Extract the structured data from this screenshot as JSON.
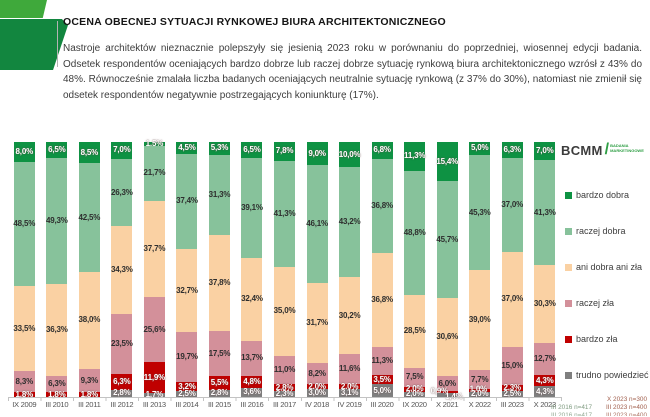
{
  "header": {
    "title": "OCENA OBECNEJ SYTUACJI RYNKOWEJ BIURA ARCHITEKTONICZNEGO",
    "paragraph": "Nastroje architektów nieznacznie polepszyły się jesienią 2023 roku w porównaniu do poprzedniej, wiosennej edycji badania. Odsetek respondentów oceniających bardzo dobrze lub raczej dobrze sytuację rynkową biura architektonicznego wzrósł z 43% do 48%. Równocześnie zmalała liczba badanych oceniających neutralnie sytuację rynkową (z 37% do 30%), natomiast nie zmienił się odsetek respondentów negatywnie postrzegających koniunkturę (17%)."
  },
  "brand": {
    "name": "BCMM",
    "slash": "/",
    "tagline_line1": "BADANIA",
    "tagline_line2": "MARKETINGOWE",
    "accent_color": "#2e9e44"
  },
  "chart_data": {
    "type": "bar",
    "stacked": true,
    "unit": "%",
    "ylim": [
      0,
      100
    ],
    "grid": false,
    "legend_position": "right",
    "decimal_separator": ",",
    "categories": [
      "IX 2009",
      "III 2010",
      "III 2011",
      "III 2012",
      "III 2013",
      "III 2014",
      "III 2015",
      "III 2016",
      "III 2017",
      "IV 2018",
      "IV 2019",
      "III 2020",
      "IX 2020",
      "X 2021",
      "X 2022",
      "III 2023",
      "X 2023"
    ],
    "series": [
      {
        "name": "bardzo dobra",
        "color": "#0e9243",
        "label_style": "light",
        "values": [
          8.0,
          6.5,
          8.5,
          7.0,
          1.5,
          4.5,
          5.3,
          6.5,
          7.8,
          9.0,
          10.0,
          6.8,
          11.3,
          15.4,
          5.0,
          6.3,
          7.0
        ]
      },
      {
        "name": "raczej dobra",
        "color": "#87c29b",
        "label_style": "dark",
        "values": [
          48.5,
          49.3,
          42.5,
          26.3,
          21.7,
          37.4,
          31.3,
          39.1,
          41.3,
          46.1,
          43.2,
          36.8,
          48.8,
          45.7,
          45.3,
          37.0,
          41.3
        ]
      },
      {
        "name": "ani dobra ani zła",
        "color": "#fad1a3",
        "label_style": "dark",
        "values": [
          33.5,
          36.3,
          38.0,
          34.3,
          37.7,
          32.7,
          37.8,
          32.4,
          35.0,
          31.7,
          30.2,
          36.8,
          28.5,
          30.6,
          39.0,
          37.0,
          30.3
        ]
      },
      {
        "name": "raczej zła",
        "color": "#d3909a",
        "label_style": "dark",
        "values": [
          8.3,
          6.3,
          9.3,
          23.5,
          25.6,
          19.7,
          17.5,
          13.7,
          11.0,
          8.2,
          11.6,
          11.3,
          7.5,
          6.0,
          7.7,
          15.0,
          12.7
        ]
      },
      {
        "name": "bardzo zła",
        "color": "#c00000",
        "label_style": "light",
        "values": [
          1.8,
          1.8,
          1.8,
          6.3,
          11.9,
          3.2,
          5.5,
          4.8,
          2.8,
          2.0,
          2.0,
          3.5,
          2.0,
          0.9,
          1.0,
          2.3,
          4.3
        ]
      },
      {
        "name": "trudno powiedzieć",
        "color": "#7f7f7f",
        "label_style": "light",
        "values": [
          null,
          null,
          null,
          2.8,
          1.7,
          2.5,
          2.8,
          3.6,
          2.3,
          3.0,
          3.1,
          5.0,
          2.0,
          1.4,
          2.0,
          2.5,
          4.3
        ]
      }
    ]
  },
  "footnotes": {
    "line1": {
      "text": "X 2023 n=300",
      "color": "#a2604e"
    },
    "line2_left": {
      "text": "III 2016 n=417",
      "color": "#7f9b80"
    },
    "line2_right": {
      "text": "III 2023 n=400",
      "color": "#a2604e"
    }
  }
}
